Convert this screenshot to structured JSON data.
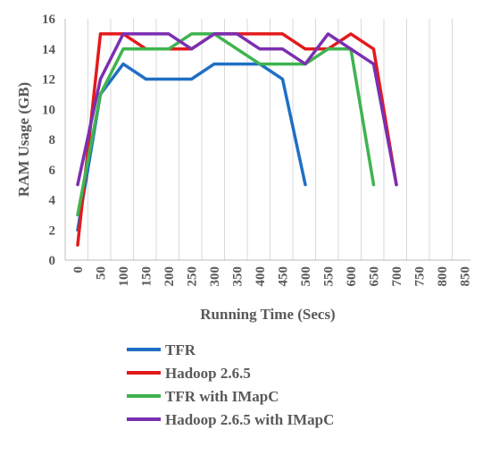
{
  "chart_data": {
    "type": "line",
    "xlabel": "Running Time (Secs)",
    "ylabel": "RAM Usage (GB)",
    "x_ticks": [
      "0",
      "50",
      "100",
      "150",
      "200",
      "250",
      "300",
      "350",
      "400",
      "450",
      "500",
      "550",
      "600",
      "650",
      "700",
      "750",
      "800",
      "850"
    ],
    "y_ticks": [
      "0",
      "2",
      "4",
      "6",
      "8",
      "10",
      "12",
      "14",
      "16"
    ],
    "xlim": [
      0,
      850
    ],
    "ylim": [
      0,
      16
    ],
    "grid": "vertical",
    "legend_position": "bottom",
    "series": [
      {
        "name": "TFR",
        "color": "#1f6fc4",
        "x": [
          0,
          50,
          100,
          150,
          200,
          250,
          300,
          350,
          400,
          450,
          500
        ],
        "y": [
          2,
          11,
          13,
          12,
          12,
          12,
          13,
          13,
          13,
          12,
          5
        ]
      },
      {
        "name": "Hadoop 2.6.5",
        "color": "#e31a1c",
        "x": [
          0,
          50,
          100,
          150,
          200,
          250,
          300,
          350,
          400,
          450,
          500,
          550,
          600,
          650,
          700
        ],
        "y": [
          1,
          15,
          15,
          14,
          14,
          14,
          15,
          15,
          15,
          15,
          14,
          14,
          15,
          14,
          5
        ]
      },
      {
        "name": "TFR with IMapC",
        "color": "#3fb34f",
        "x": [
          0,
          50,
          100,
          150,
          200,
          250,
          300,
          350,
          400,
          450,
          500,
          550,
          600,
          650
        ],
        "y": [
          3,
          11,
          14,
          14,
          14,
          15,
          15,
          14,
          13,
          13,
          13,
          14,
          14,
          5
        ]
      },
      {
        "name": "Hadoop 2.6.5 with IMapC",
        "color": "#7b2fb0",
        "x": [
          0,
          50,
          100,
          150,
          200,
          250,
          300,
          350,
          400,
          450,
          500,
          550,
          600,
          650,
          700
        ],
        "y": [
          5,
          12,
          15,
          15,
          15,
          14,
          15,
          15,
          14,
          14,
          13,
          15,
          14,
          13,
          5
        ]
      }
    ]
  }
}
